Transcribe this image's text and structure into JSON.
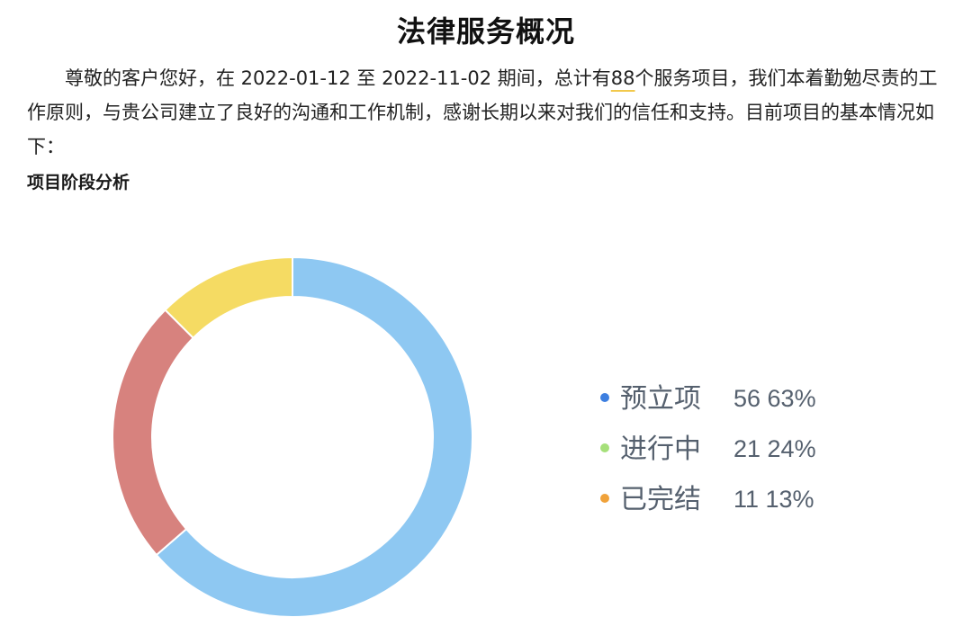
{
  "page": {
    "title": "法律服务概况",
    "intro": {
      "part1": "尊敬的客户您好，在 2022-01-12 至 2022-11-02 期间，总计有",
      "count": "88",
      "part2": "个服务项目，我们本着勤勉尽责的工作原则，与贵公司建立了良好的沟通和工作机制，感谢长期以来对我们的信任和支持。目前项目的基本情况如下："
    },
    "section_title": "项目阶段分析"
  },
  "colors": {
    "slices": [
      "#8ec8f2",
      "#d7827e",
      "#f5db63"
    ],
    "legend_dots": [
      "#3d7fe0",
      "#a6e07a",
      "#f0a23a"
    ]
  },
  "chart_data": {
    "type": "pie",
    "style": "donut",
    "legend_position": "right",
    "categories": [
      "预立项",
      "进行中",
      "已完结"
    ],
    "values": [
      56,
      21,
      11
    ],
    "percent_labels": [
      "63%",
      "24%",
      "13%"
    ]
  }
}
